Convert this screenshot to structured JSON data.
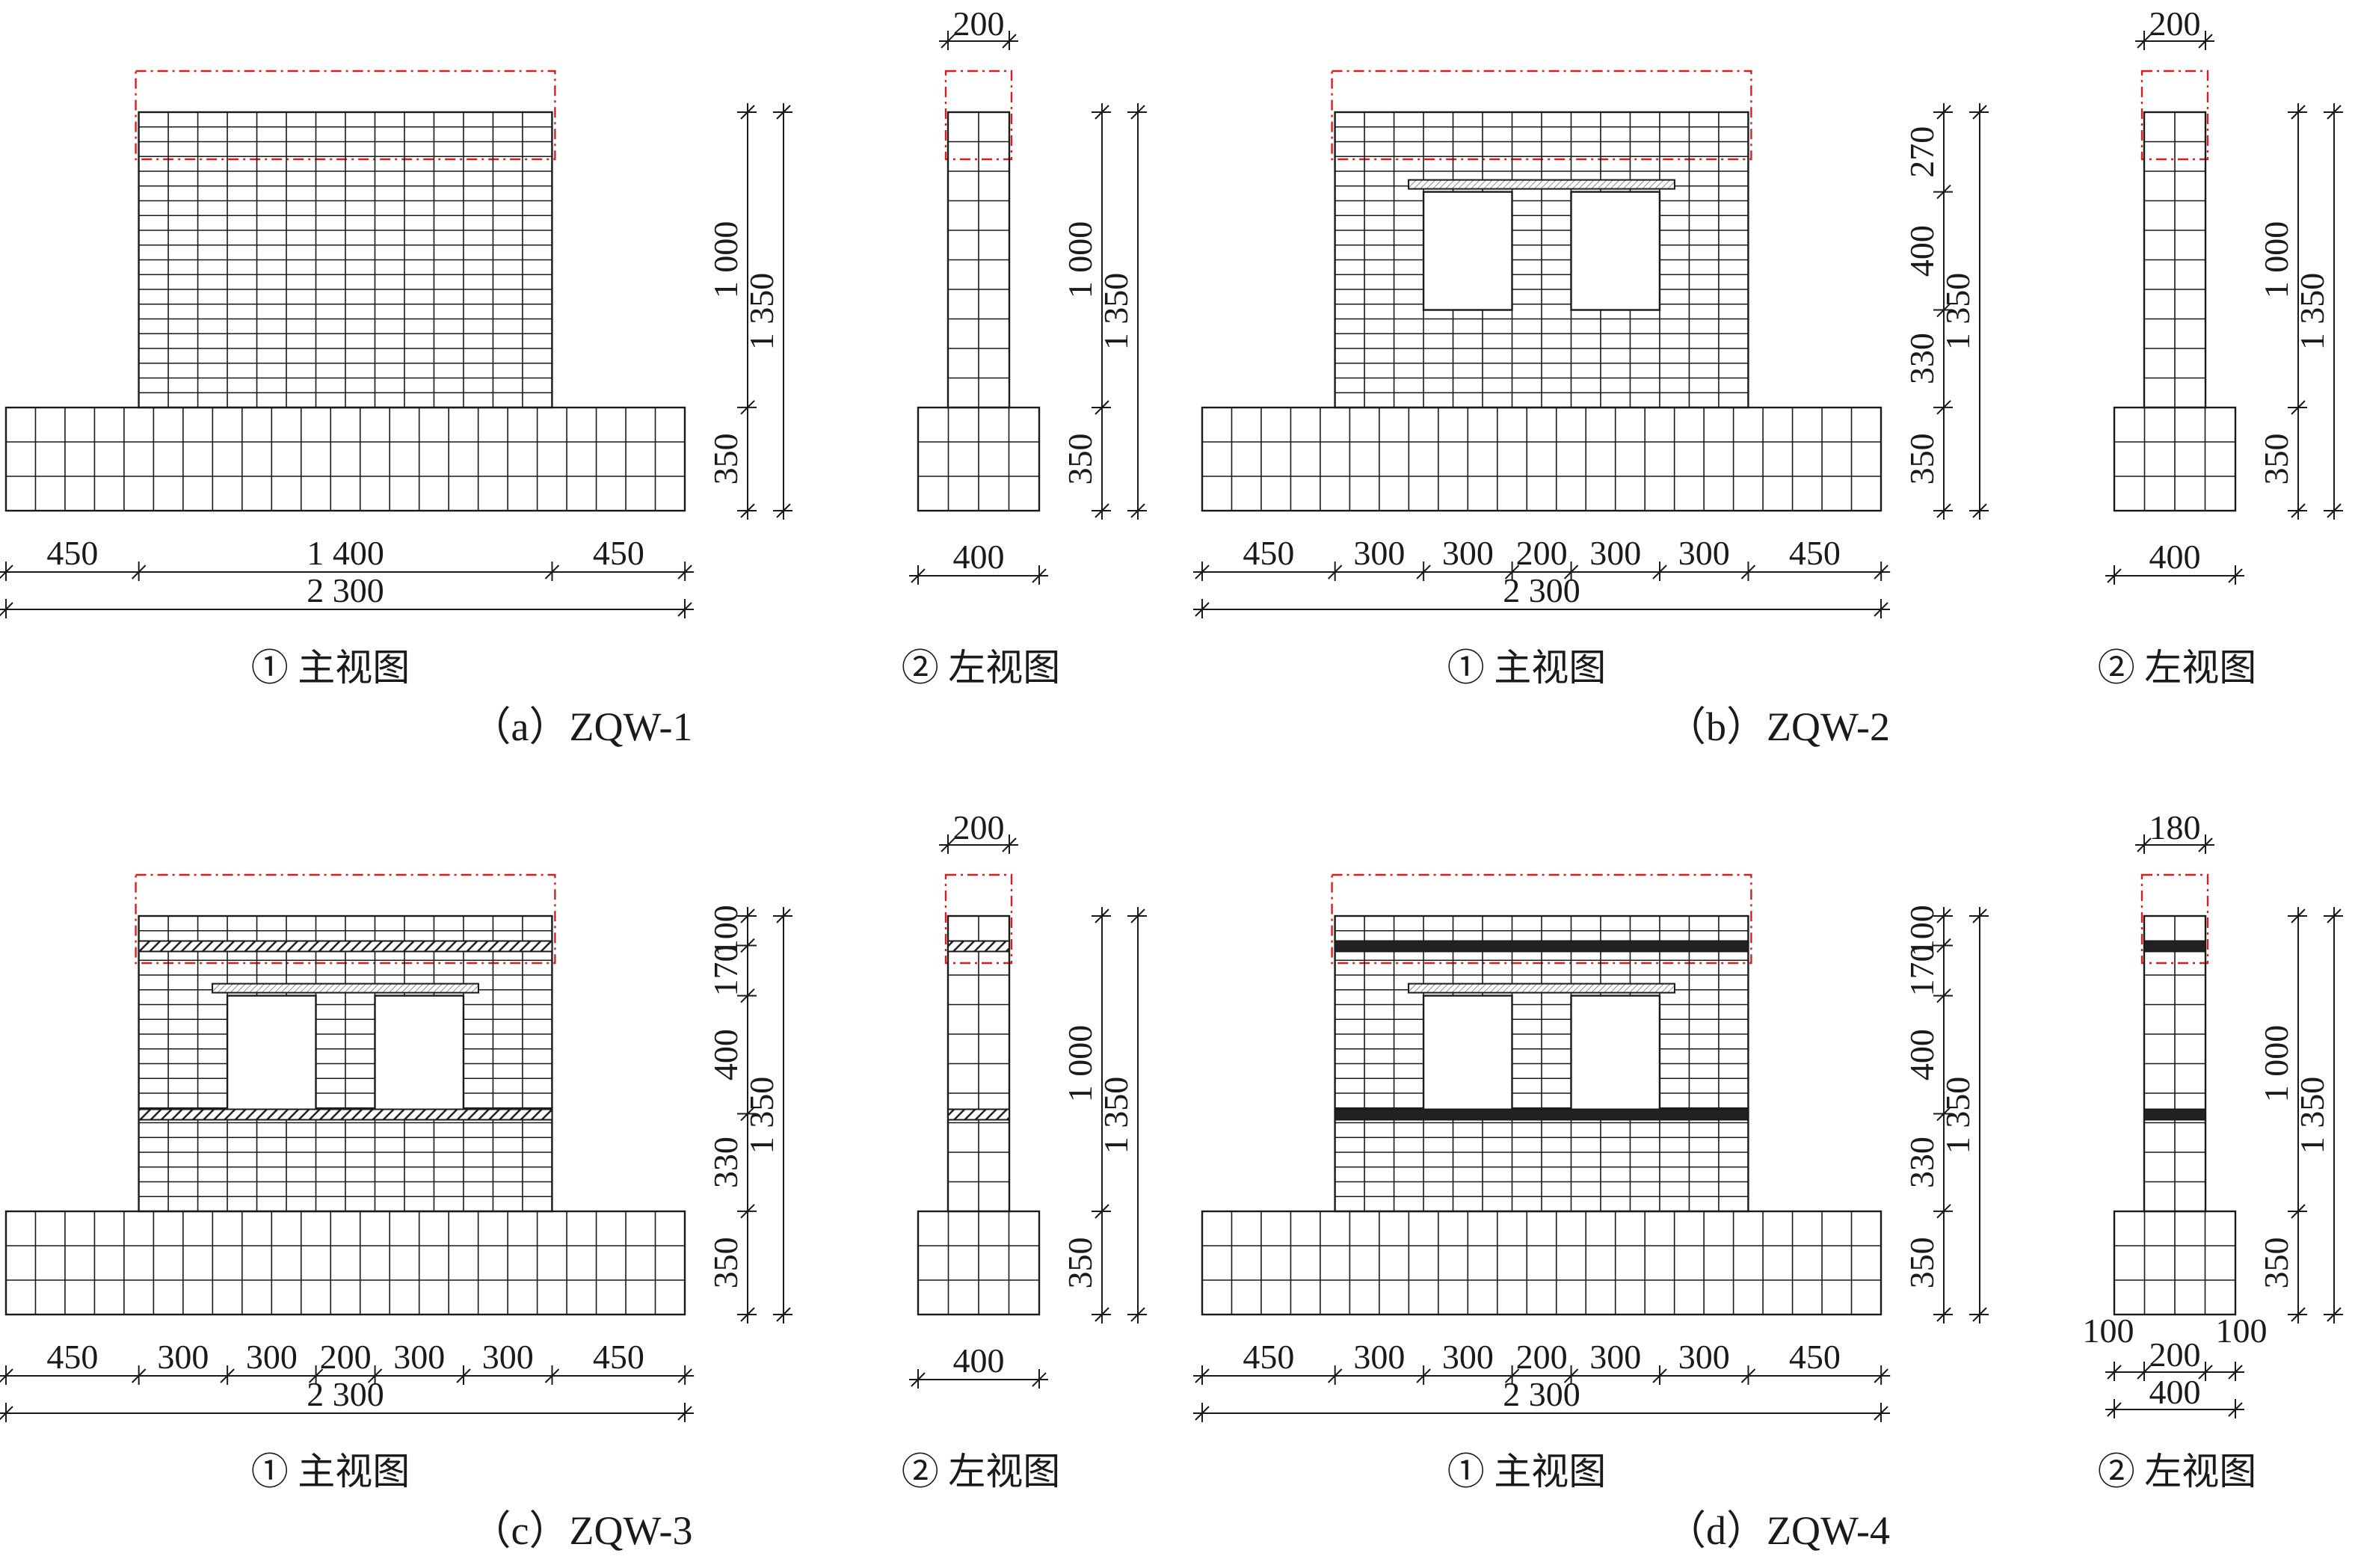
{
  "colors": {
    "line": "#1a1a1a",
    "red": "#d62020",
    "beam": "#333333"
  },
  "panels": [
    {
      "id": "a",
      "title": "（a）ZQW-1",
      "front_caption": "① 主视图",
      "side_caption": "② 左视图",
      "openings": false,
      "ring_beams": false,
      "lintel": true,
      "dims": {
        "h_bottom": [
          "450",
          "1 400",
          "450"
        ],
        "h_total": "2 300",
        "front_v_right": [
          "1 000",
          "350"
        ],
        "front_v_total": "1 350",
        "side_top": "200",
        "side_bottom": "400",
        "side_v_right": [
          "1 000",
          "350"
        ],
        "side_v_total": "1 350"
      }
    },
    {
      "id": "b",
      "title": "（b）ZQW-2",
      "front_caption": "① 主视图",
      "side_caption": "② 左视图",
      "openings": true,
      "ring_beams": false,
      "lintel": true,
      "dims": {
        "h_bottom": [
          "450",
          "300",
          "300",
          "200",
          "300",
          "300",
          "450"
        ],
        "h_total": "2 300",
        "front_v_right": [
          "270",
          "400",
          "330",
          "350"
        ],
        "front_v_total": "1 350",
        "side_top": "200",
        "side_bottom": "400",
        "side_v_right": [
          "1 000",
          "350"
        ],
        "side_v_total": "1 350"
      }
    },
    {
      "id": "c",
      "title": "（c）ZQW-3",
      "front_caption": "① 主视图",
      "side_caption": "② 左视图",
      "openings": true,
      "ring_beams": true,
      "lintel": true,
      "dims": {
        "h_bottom": [
          "450",
          "300",
          "300",
          "200",
          "300",
          "300",
          "450"
        ],
        "h_total": "2 300",
        "front_v_right": [
          "100",
          "170",
          "400",
          "330",
          "350"
        ],
        "front_v_total": "1 350",
        "side_top": "200",
        "side_bottom": "400",
        "side_v_right": [
          "1 000",
          "350"
        ],
        "side_v_total": "1 350"
      }
    },
    {
      "id": "d",
      "title": "（d）ZQW-4",
      "front_caption": "① 主视图",
      "side_caption": "② 左视图",
      "openings": true,
      "ring_beams": true,
      "lintel": true,
      "dims": {
        "h_bottom": [
          "450",
          "300",
          "300",
          "200",
          "300",
          "300",
          "450"
        ],
        "h_total": "2 300",
        "front_v_right": [
          "100",
          "170",
          "400",
          "330",
          "350"
        ],
        "front_v_total": "1 350",
        "side_top": "180",
        "side_bottom_parts": [
          "100",
          "200",
          "100"
        ],
        "side_bottom": "400",
        "side_v_right": [
          "1 000",
          "350"
        ],
        "side_v_total": "1 350"
      }
    }
  ]
}
